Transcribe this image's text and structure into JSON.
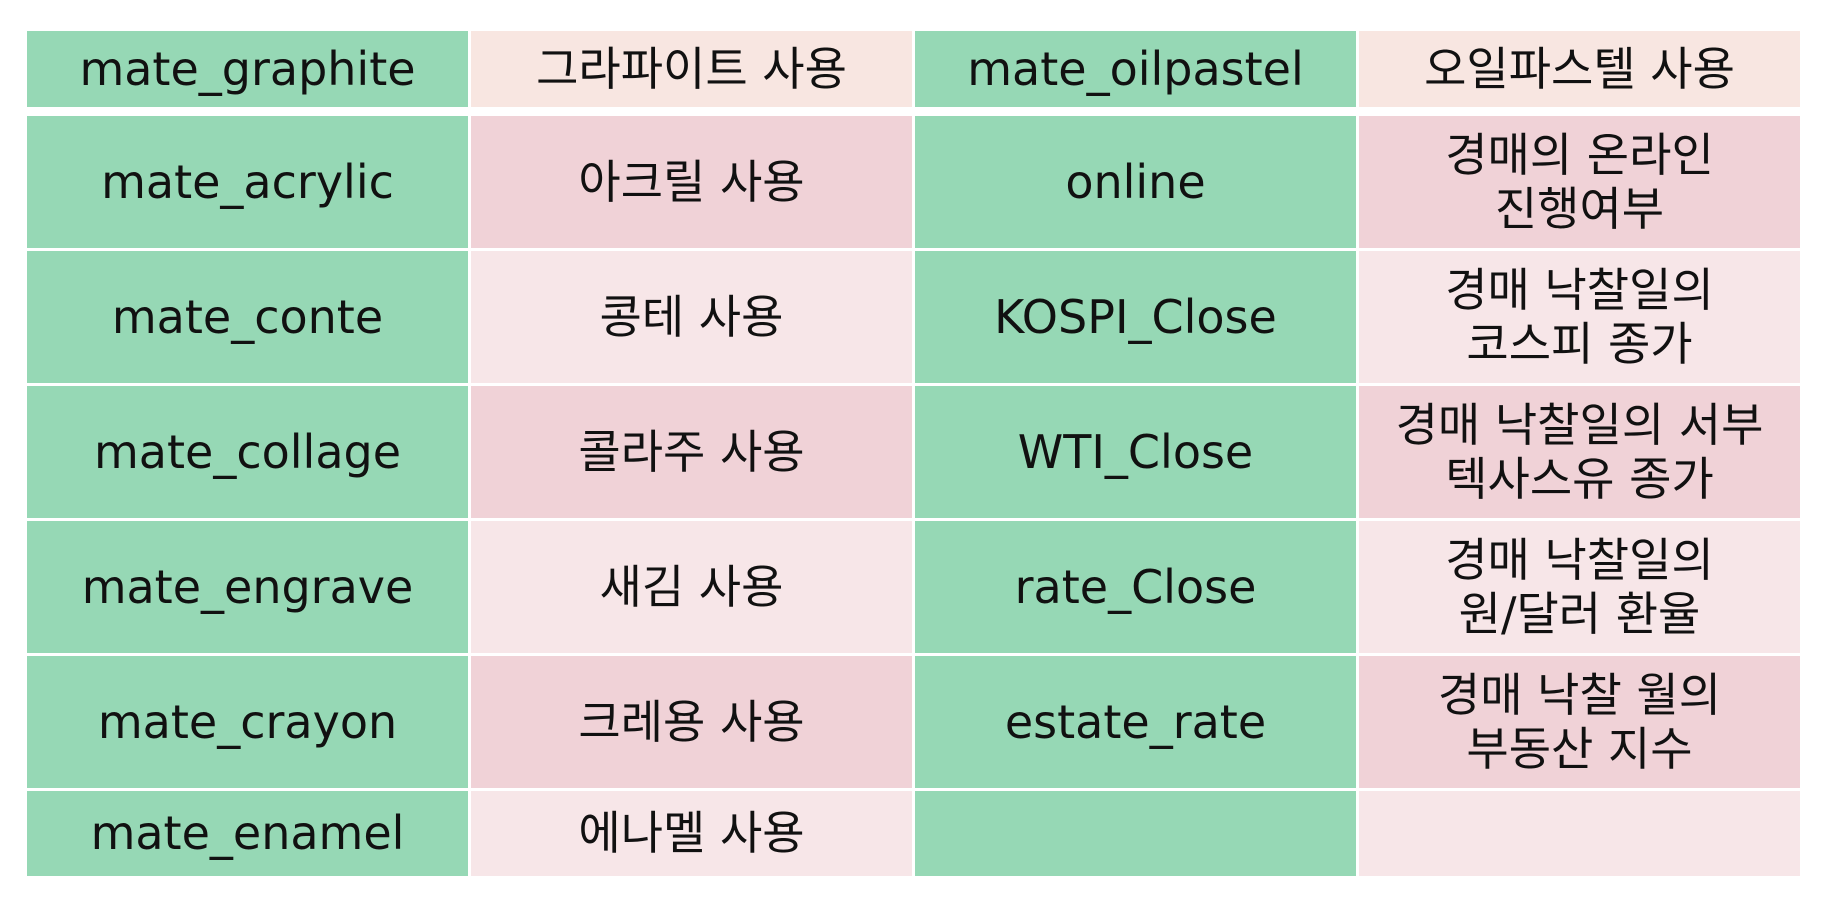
{
  "colors": {
    "variable_cell": "#96d8b5",
    "header_desc_cell": "#f8e6e1",
    "desc_cell_dark": "#f0d2d7",
    "desc_cell_light": "#f7e6e8"
  },
  "rows": [
    {
      "var1": "mate_graphite",
      "desc1": "그라파이트 사용",
      "var2": "mate_oilpastel",
      "desc2": "오일파스텔 사용"
    },
    {
      "var1": "mate_acrylic",
      "desc1": "아크릴 사용",
      "var2": "online",
      "desc2": "경매의 온라인\n진행여부"
    },
    {
      "var1": "mate_conte",
      "desc1": "콩테 사용",
      "var2": "KOSPI_Close",
      "desc2": "경매 낙찰일의\n코스피 종가"
    },
    {
      "var1": "mate_collage",
      "desc1": "콜라주 사용",
      "var2": "WTI_Close",
      "desc2": "경매 낙찰일의 서부\n텍사스유 종가"
    },
    {
      "var1": "mate_engrave",
      "desc1": "새김 사용",
      "var2": "rate_Close",
      "desc2": "경매 낙찰일의\n원/달러 환율"
    },
    {
      "var1": "mate_crayon",
      "desc1": "크레용 사용",
      "var2": "estate_rate",
      "desc2": "경매 낙찰 월의\n부동산 지수"
    },
    {
      "var1": "mate_enamel",
      "desc1": "에나멜 사용",
      "var2": "",
      "desc2": ""
    }
  ]
}
